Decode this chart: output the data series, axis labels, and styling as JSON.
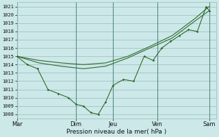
{
  "bg_color": "#cce8e8",
  "grid_color": "#99bbbb",
  "line_color": "#2d6a2d",
  "title": "Pression niveau de la mer( hPa )",
  "ylim": [
    1007.5,
    1021.5
  ],
  "yticks": [
    1008,
    1009,
    1010,
    1011,
    1012,
    1013,
    1014,
    1015,
    1016,
    1017,
    1018,
    1019,
    1020,
    1021
  ],
  "xtick_labels": [
    "Mar",
    "Dim",
    "Jeu",
    "Ven",
    "Sam"
  ],
  "xtick_positions": [
    0,
    4.0,
    6.5,
    9.5,
    13.0
  ],
  "xlim": [
    0,
    13.5
  ],
  "xvlines": [
    0,
    4.0,
    6.5,
    9.5,
    13.0
  ],
  "series_jagged": {
    "x": [
      0,
      0.7,
      1.4,
      2.1,
      2.8,
      3.5,
      4.0,
      4.5,
      5.0,
      5.5,
      6.0,
      6.5,
      7.2,
      7.9,
      8.6,
      9.2,
      9.8,
      10.4,
      11.0,
      11.6,
      12.2,
      12.8,
      13.0
    ],
    "y": [
      1015,
      1014,
      1013.5,
      1011,
      1010.5,
      1010,
      1009.2,
      1009,
      1008.2,
      1008,
      1009.5,
      1011.5,
      1012.2,
      1012,
      1015,
      1014.5,
      1016,
      1016.8,
      1017.5,
      1018.2,
      1018,
      1021,
      1020.5
    ]
  },
  "series_smooth1": {
    "x": [
      0,
      1.5,
      3.0,
      4.5,
      6.0,
      7.5,
      9.0,
      10.5,
      12.0,
      13.0
    ],
    "y": [
      1015,
      1014.5,
      1014.2,
      1014.0,
      1014.2,
      1015.0,
      1016.2,
      1017.5,
      1019.5,
      1021
    ]
  },
  "series_smooth2": {
    "x": [
      0,
      1.5,
      3.0,
      4.5,
      6.0,
      7.5,
      9.0,
      10.5,
      12.0,
      13.0
    ],
    "y": [
      1015,
      1014.2,
      1013.8,
      1013.5,
      1013.8,
      1014.8,
      1016.0,
      1017.2,
      1019.2,
      1020.5
    ]
  }
}
